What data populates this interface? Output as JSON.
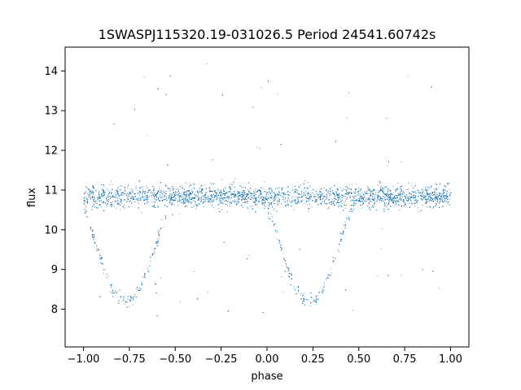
{
  "chart_data": {
    "type": "scatter",
    "title": "1SWASPJ115320.19-031026.5 Period 24541.60742s",
    "xlabel": "phase",
    "ylabel": "flux",
    "xlim": [
      -1.1,
      1.1
    ],
    "ylim": [
      7.05,
      14.6
    ],
    "x_ticks": [
      -1.0,
      -0.75,
      -0.5,
      -0.25,
      0.0,
      0.25,
      0.5,
      0.75,
      1.0
    ],
    "x_tick_labels": [
      "−1.00",
      "−0.75",
      "−0.50",
      "−0.25",
      "0.00",
      "0.25",
      "0.50",
      "0.75",
      "1.00"
    ],
    "y_ticks": [
      8,
      9,
      10,
      11,
      12,
      13,
      14
    ],
    "y_tick_labels": [
      "8",
      "9",
      "10",
      "11",
      "12",
      "13",
      "14"
    ],
    "grid": false,
    "marker_color": "#1f77b4",
    "series": [
      {
        "x_range": [
          -1.0,
          1.0
        ],
        "baseline_flux": 10.85,
        "baseline_scatter": 0.2,
        "eclipse_minima": [
          {
            "phase": -0.77,
            "flux": 8.2
          },
          {
            "phase": 0.23,
            "flux": 8.2
          }
        ],
        "outlier_range": [
          7.5,
          14.3
        ]
      }
    ]
  }
}
